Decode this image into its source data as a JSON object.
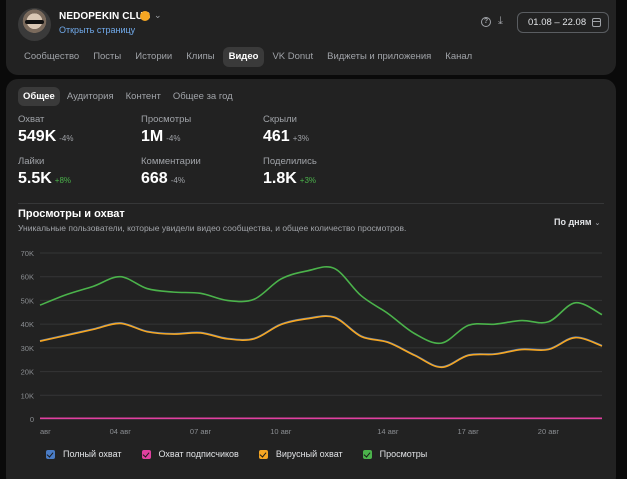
{
  "header": {
    "club_name": "NEDOPEKIN CLUB",
    "open_link": "Открыть страницу",
    "date_range": "01.08 – 22.08",
    "icons": {
      "verified": "verified-icon",
      "chevron": "chevron-down-icon",
      "help": "help-icon",
      "download": "download-icon",
      "calendar": "calendar-icon"
    }
  },
  "tabs": [
    {
      "label": "Сообщество",
      "active": false
    },
    {
      "label": "Посты",
      "active": false
    },
    {
      "label": "Истории",
      "active": false
    },
    {
      "label": "Клипы",
      "active": false
    },
    {
      "label": "Видео",
      "active": true
    },
    {
      "label": "VK Donut",
      "active": false
    },
    {
      "label": "Виджеты и приложения",
      "active": false
    },
    {
      "label": "Канал",
      "active": false
    }
  ],
  "subtabs": [
    {
      "label": "Общее",
      "active": true
    },
    {
      "label": "Аудитория",
      "active": false
    },
    {
      "label": "Контент",
      "active": false
    },
    {
      "label": "Общее за год",
      "active": false
    }
  ],
  "metrics": {
    "reach": {
      "label": "Охват",
      "value": "549K",
      "delta": "-4%",
      "trend": "neg"
    },
    "views": {
      "label": "Просмотры",
      "value": "1M",
      "delta": "-4%",
      "trend": "neg"
    },
    "hidden": {
      "label": "Скрыли",
      "value": "461",
      "delta": "+3%",
      "trend": "neg"
    },
    "likes": {
      "label": "Лайки",
      "value": "5.5K",
      "delta": "+8%",
      "trend": "pos"
    },
    "comments": {
      "label": "Комментарии",
      "value": "668",
      "delta": "-4%",
      "trend": "neg"
    },
    "shares": {
      "label": "Поделились",
      "value": "1.8K",
      "delta": "+3%",
      "trend": "pos"
    }
  },
  "chart": {
    "title": "Просмотры и охват",
    "subtitle": "Уникальные пользователи, которые увидели видео сообщества, и общее количество просмотров.",
    "period_select": "По дням"
  },
  "chart_data": {
    "type": "line",
    "x": [
      "01 авг",
      "02 авг",
      "03 авг",
      "04 авг",
      "05 авг",
      "06 авг",
      "07 авг",
      "08 авг",
      "09 авг",
      "10 авг",
      "11 авг",
      "12 авг",
      "13 авг",
      "14 авг",
      "15 авг",
      "16 авг",
      "17 авг",
      "18 авг",
      "19 авг",
      "20 авг",
      "21 авг",
      "22 авг"
    ],
    "x_tick_labels": [
      "авг",
      "04 авг",
      "07 авг",
      "10 авг",
      "14 авг",
      "17 авг",
      "20 авг"
    ],
    "x_tick_indices": [
      0,
      3,
      6,
      9,
      13,
      16,
      19
    ],
    "y_ticks": [
      0,
      10000,
      20000,
      30000,
      40000,
      50000,
      60000,
      70000
    ],
    "y_tick_labels": [
      "0",
      "10K",
      "20K",
      "30K",
      "40K",
      "50K",
      "60K",
      "70K"
    ],
    "ylim": [
      0,
      70000
    ],
    "grid": true,
    "legend_position": "bottom",
    "series": [
      {
        "name": "Полный охват",
        "color": "#4a7cc5",
        "values": [
          33000,
          35500,
          38000,
          40500,
          37000,
          36000,
          36500,
          34000,
          34000,
          40000,
          42500,
          43000,
          35000,
          32500,
          27000,
          22000,
          27000,
          27500,
          29500,
          29500,
          34500,
          31000
        ]
      },
      {
        "name": "Охват подписчиков",
        "color": "#e040a0",
        "values": [
          300,
          300,
          300,
          300,
          300,
          300,
          300,
          300,
          300,
          300,
          300,
          300,
          300,
          300,
          300,
          300,
          300,
          300,
          300,
          300,
          300,
          300
        ]
      },
      {
        "name": "Вирусный охват",
        "color": "#f5a623",
        "values": [
          32800,
          35300,
          37800,
          40300,
          36800,
          35800,
          36300,
          33800,
          33800,
          39800,
          42300,
          42800,
          34800,
          32300,
          26800,
          21800,
          26800,
          27300,
          29300,
          29300,
          34300,
          30800
        ]
      },
      {
        "name": "Просмотры",
        "color": "#4bb34b",
        "values": [
          48000,
          52500,
          56000,
          60000,
          55000,
          53500,
          53000,
          50000,
          50500,
          59000,
          62500,
          63500,
          52000,
          44500,
          36000,
          32000,
          39500,
          40000,
          41500,
          41000,
          49000,
          44000
        ]
      }
    ]
  }
}
